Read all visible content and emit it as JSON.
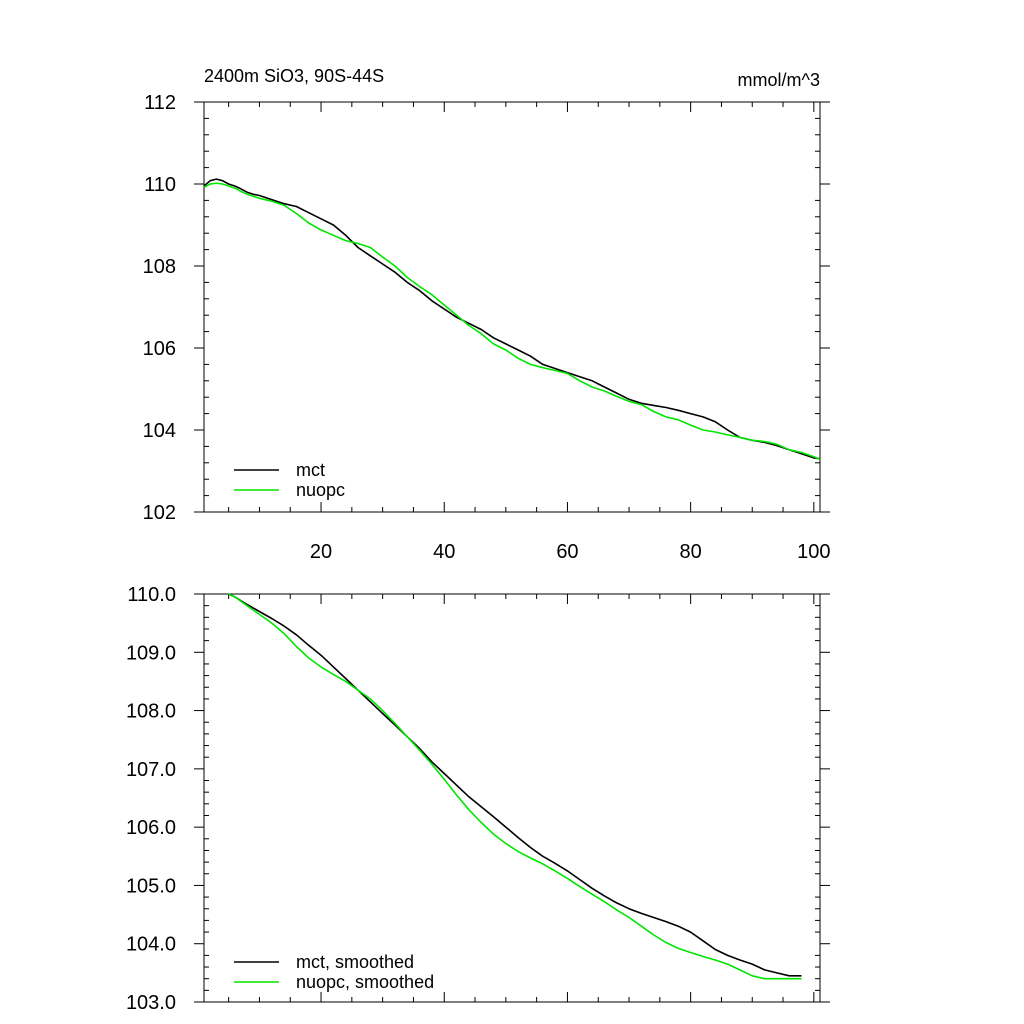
{
  "chart_data": [
    {
      "type": "line",
      "title_left": "2400m SiO3, 90S-44S",
      "title_right": "mmol/m^3",
      "xlim": [
        1,
        101
      ],
      "ylim": [
        102,
        112
      ],
      "xticks": [
        20,
        40,
        60,
        80,
        100
      ],
      "xtick_labels": [
        "20",
        "40",
        "60",
        "80",
        "100"
      ],
      "yticks": [
        102,
        104,
        106,
        108,
        110,
        112
      ],
      "ytick_labels": [
        "102",
        "104",
        "106",
        "108",
        "110",
        "112"
      ],
      "grid": false,
      "legend_position": "bottom-left",
      "series": [
        {
          "name": "mct",
          "color": "#000000",
          "x": [
            1,
            2,
            3,
            4,
            5,
            6,
            7,
            8,
            9,
            10,
            12,
            14,
            16,
            18,
            20,
            22,
            24,
            26,
            28,
            30,
            32,
            34,
            36,
            38,
            40,
            42,
            44,
            46,
            48,
            50,
            52,
            54,
            56,
            58,
            60,
            62,
            64,
            66,
            68,
            70,
            72,
            74,
            76,
            78,
            80,
            82,
            84,
            86,
            88,
            90,
            92,
            94,
            96,
            98,
            100,
            101
          ],
          "values": [
            109.95,
            110.08,
            110.12,
            110.08,
            110.0,
            109.95,
            109.88,
            109.8,
            109.75,
            109.72,
            109.62,
            109.52,
            109.45,
            109.3,
            109.15,
            109.0,
            108.75,
            108.45,
            108.25,
            108.05,
            107.85,
            107.6,
            107.4,
            107.15,
            106.95,
            106.75,
            106.6,
            106.45,
            106.25,
            106.1,
            105.95,
            105.8,
            105.6,
            105.5,
            105.4,
            105.3,
            105.2,
            105.05,
            104.9,
            104.75,
            104.65,
            104.6,
            104.55,
            104.48,
            104.4,
            104.32,
            104.2,
            104.0,
            103.82,
            103.75,
            103.7,
            103.62,
            103.52,
            103.42,
            103.32,
            103.3
          ]
        },
        {
          "name": "nuopc",
          "color": "#00e600",
          "x": [
            1,
            2,
            3,
            4,
            5,
            6,
            7,
            8,
            9,
            10,
            12,
            14,
            16,
            18,
            20,
            22,
            24,
            26,
            28,
            30,
            32,
            34,
            36,
            38,
            40,
            42,
            44,
            46,
            48,
            50,
            52,
            54,
            56,
            58,
            60,
            62,
            64,
            66,
            68,
            70,
            72,
            74,
            76,
            78,
            80,
            82,
            84,
            86,
            88,
            90,
            92,
            94,
            96,
            98,
            100,
            101
          ],
          "values": [
            109.92,
            110.0,
            110.02,
            110.0,
            109.95,
            109.9,
            109.82,
            109.75,
            109.7,
            109.65,
            109.58,
            109.48,
            109.28,
            109.05,
            108.88,
            108.75,
            108.62,
            108.55,
            108.45,
            108.22,
            108.0,
            107.72,
            107.5,
            107.3,
            107.05,
            106.8,
            106.55,
            106.35,
            106.1,
            105.95,
            105.75,
            105.6,
            105.52,
            105.45,
            105.38,
            105.2,
            105.05,
            104.95,
            104.82,
            104.7,
            104.62,
            104.45,
            104.32,
            104.25,
            104.12,
            104.0,
            103.95,
            103.88,
            103.82,
            103.75,
            103.72,
            103.65,
            103.52,
            103.45,
            103.35,
            103.28
          ]
        }
      ]
    },
    {
      "type": "line",
      "xlim": [
        1,
        101
      ],
      "ylim": [
        103.0,
        110.0
      ],
      "xticks": [
        20,
        40,
        60,
        80,
        100
      ],
      "yticks": [
        103,
        104,
        105,
        106,
        107,
        108,
        109,
        110
      ],
      "ytick_labels": [
        "103.0",
        "104.0",
        "105.0",
        "106.0",
        "107.0",
        "108.0",
        "109.0",
        "110.0"
      ],
      "grid": false,
      "legend_position": "bottom-left",
      "series": [
        {
          "name": "mct, smoothed",
          "color": "#000000",
          "x": [
            5,
            6,
            8,
            10,
            12,
            14,
            16,
            18,
            20,
            22,
            24,
            26,
            28,
            30,
            32,
            34,
            36,
            38,
            40,
            42,
            44,
            46,
            48,
            50,
            52,
            54,
            56,
            58,
            60,
            62,
            64,
            66,
            68,
            70,
            72,
            74,
            76,
            78,
            80,
            82,
            84,
            86,
            88,
            90,
            92,
            94,
            96,
            98
          ],
          "values": [
            110.0,
            109.95,
            109.82,
            109.7,
            109.58,
            109.45,
            109.3,
            109.12,
            108.95,
            108.75,
            108.55,
            108.35,
            108.15,
            107.95,
            107.75,
            107.55,
            107.35,
            107.12,
            106.92,
            106.72,
            106.52,
            106.35,
            106.18,
            106.0,
            105.82,
            105.65,
            105.5,
            105.38,
            105.25,
            105.1,
            104.95,
            104.82,
            104.7,
            104.6,
            104.52,
            104.45,
            104.38,
            104.3,
            104.2,
            104.05,
            103.9,
            103.8,
            103.72,
            103.65,
            103.55,
            103.5,
            103.45,
            103.45
          ]
        },
        {
          "name": "nuopc, smoothed",
          "color": "#00e600",
          "x": [
            5,
            6,
            8,
            10,
            12,
            14,
            16,
            18,
            20,
            22,
            24,
            26,
            28,
            30,
            32,
            34,
            36,
            38,
            40,
            42,
            44,
            46,
            48,
            50,
            52,
            54,
            56,
            58,
            60,
            62,
            64,
            66,
            68,
            70,
            72,
            74,
            76,
            78,
            80,
            82,
            84,
            86,
            88,
            90,
            92,
            94,
            96,
            98
          ],
          "values": [
            110.0,
            109.95,
            109.8,
            109.65,
            109.5,
            109.32,
            109.1,
            108.9,
            108.75,
            108.62,
            108.5,
            108.35,
            108.2,
            108.0,
            107.78,
            107.55,
            107.32,
            107.08,
            106.82,
            106.55,
            106.3,
            106.08,
            105.88,
            105.72,
            105.58,
            105.47,
            105.37,
            105.25,
            105.12,
            104.98,
            104.85,
            104.72,
            104.58,
            104.45,
            104.3,
            104.15,
            104.02,
            103.92,
            103.85,
            103.78,
            103.72,
            103.65,
            103.55,
            103.45,
            103.4,
            103.4,
            103.4,
            103.4
          ]
        }
      ]
    }
  ]
}
